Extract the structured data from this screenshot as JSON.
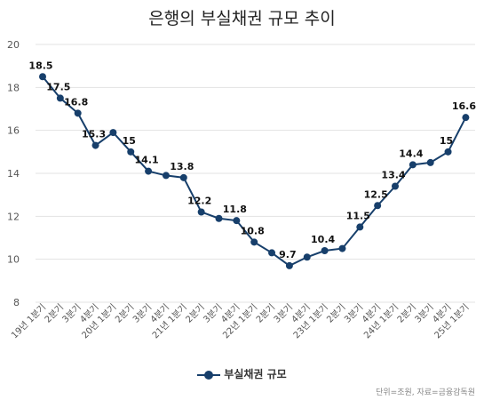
{
  "chart_data": {
    "type": "line",
    "title": "은행의 부실채권 규모 추이",
    "categories": [
      "19년 1분기",
      "2분기",
      "3분기",
      "4분기",
      "20년 1분기",
      "2분기",
      "3분기",
      "4분기",
      "21년 1분기",
      "2분기",
      "3분기",
      "4분기",
      "22년 1분기",
      "2분기",
      "3분기",
      "4분기",
      "23년 1분기",
      "2분기",
      "3분기",
      "4분기",
      "24년 1분기",
      "2분기",
      "3분기",
      "4분기",
      "25년 1분기"
    ],
    "series": [
      {
        "name": "부실채권 규모",
        "values": [
          18.5,
          17.5,
          16.8,
          15.3,
          15.9,
          15,
          14.1,
          13.9,
          13.8,
          12.2,
          11.9,
          11.8,
          10.8,
          10.3,
          9.7,
          10.1,
          10.4,
          10.5,
          11.5,
          12.5,
          13.4,
          14.4,
          14.5,
          15,
          16.6
        ],
        "labels": [
          "18.5",
          "17.5",
          "16.8",
          "15.3",
          "",
          "15",
          "14.1",
          "",
          "13.8",
          "12.2",
          "",
          "11.8",
          "10.8",
          "",
          "9.7",
          "",
          "10.4",
          "",
          "11.5",
          "12.5",
          "13.4",
          "14.4",
          "",
          "15",
          "16.6"
        ]
      }
    ],
    "y_ticks": [
      "8",
      "10",
      "12",
      "14",
      "16",
      "18",
      "20"
    ],
    "ylim": [
      8,
      20
    ],
    "grid": true,
    "legend_position": "bottom",
    "color": "#173f6b",
    "source_note": "단위=조원, 자료=금융감독원"
  }
}
